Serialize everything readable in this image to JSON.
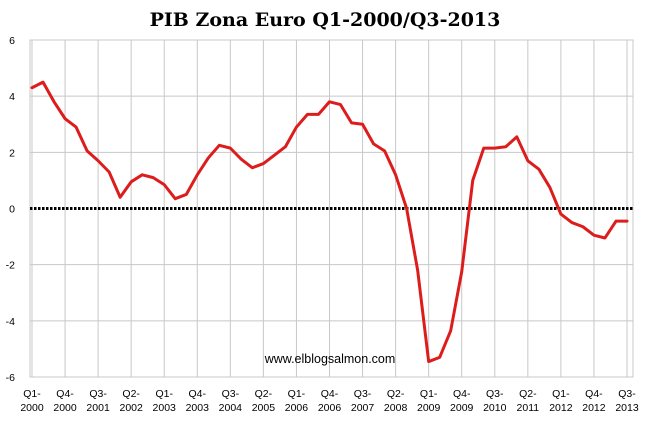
{
  "chart_data": {
    "type": "line",
    "title": "PIB Zona Euro Q1-2000/Q3-2013",
    "xlabel": "",
    "ylabel": "",
    "ylim": [
      -6,
      6
    ],
    "yticks": [
      "6",
      "4",
      "2",
      "0",
      "-2",
      "-4",
      "-6"
    ],
    "grid": true,
    "legend": "none",
    "annotation": "www.elblogsalmon.com",
    "x": [
      "Q1-2000",
      "Q2-2000",
      "Q3-2000",
      "Q4-2000",
      "Q1-2001",
      "Q2-2001",
      "Q3-2001",
      "Q4-2001",
      "Q1-2002",
      "Q2-2002",
      "Q3-2002",
      "Q4-2002",
      "Q1-2003",
      "Q2-2003",
      "Q3-2003",
      "Q4-2003",
      "Q1-2004",
      "Q2-2004",
      "Q3-2004",
      "Q4-2004",
      "Q1-2005",
      "Q2-2005",
      "Q3-2005",
      "Q4-2005",
      "Q1-2006",
      "Q2-2006",
      "Q3-2006",
      "Q4-2006",
      "Q1-2007",
      "Q2-2007",
      "Q3-2007",
      "Q4-2007",
      "Q1-2008",
      "Q2-2008",
      "Q3-2008",
      "Q4-2008",
      "Q1-2009",
      "Q2-2009",
      "Q3-2009",
      "Q4-2009",
      "Q1-2010",
      "Q2-2010",
      "Q3-2010",
      "Q4-2010",
      "Q1-2011",
      "Q2-2011",
      "Q3-2011",
      "Q4-2011",
      "Q1-2012",
      "Q2-2012",
      "Q3-2012",
      "Q4-2012",
      "Q1-2013",
      "Q2-2013",
      "Q3-2013"
    ],
    "x_tick_labels": [
      {
        "top": "Q1-",
        "bottom": "2000",
        "index": 0
      },
      {
        "top": "Q4-",
        "bottom": "2000",
        "index": 3
      },
      {
        "top": "Q3-",
        "bottom": "2001",
        "index": 6
      },
      {
        "top": "Q2-",
        "bottom": "2002",
        "index": 9
      },
      {
        "top": "Q1-",
        "bottom": "2003",
        "index": 12
      },
      {
        "top": "Q4-",
        "bottom": "2003",
        "index": 15
      },
      {
        "top": "Q3-",
        "bottom": "2004",
        "index": 18
      },
      {
        "top": "Q2-",
        "bottom": "2005",
        "index": 21
      },
      {
        "top": "Q1-",
        "bottom": "2006",
        "index": 24
      },
      {
        "top": "Q4-",
        "bottom": "2006",
        "index": 27
      },
      {
        "top": "Q3-",
        "bottom": "2007",
        "index": 30
      },
      {
        "top": "Q2-",
        "bottom": "2008",
        "index": 33
      },
      {
        "top": "Q1-",
        "bottom": "2009",
        "index": 36
      },
      {
        "top": "Q4-",
        "bottom": "2009",
        "index": 39
      },
      {
        "top": "Q3-",
        "bottom": "2010",
        "index": 42
      },
      {
        "top": "Q2-",
        "bottom": "2011",
        "index": 45
      },
      {
        "top": "Q1-",
        "bottom": "2012",
        "index": 48
      },
      {
        "top": "Q4-",
        "bottom": "2012",
        "index": 51
      },
      {
        "top": "Q3-",
        "bottom": "2013",
        "index": 54
      }
    ],
    "series": [
      {
        "color": "#dd1c1c",
        "values": [
          4.3,
          4.5,
          3.8,
          3.2,
          2.9,
          2.05,
          1.7,
          1.3,
          0.4,
          0.95,
          1.2,
          1.1,
          0.85,
          0.35,
          0.5,
          1.2,
          1.8,
          2.25,
          2.15,
          1.75,
          1.45,
          1.6,
          1.9,
          2.2,
          2.9,
          3.35,
          3.35,
          3.8,
          3.7,
          3.05,
          3.0,
          2.3,
          2.05,
          1.2,
          0.0,
          -2.2,
          -5.45,
          -5.3,
          -4.35,
          -2.25,
          1.0,
          2.15,
          2.15,
          2.2,
          2.55,
          1.7,
          1.4,
          0.75,
          -0.2,
          -0.5,
          -0.65,
          -0.95,
          -1.05,
          -0.45,
          -0.45
        ]
      }
    ],
    "zero_line_color": "#000000"
  }
}
